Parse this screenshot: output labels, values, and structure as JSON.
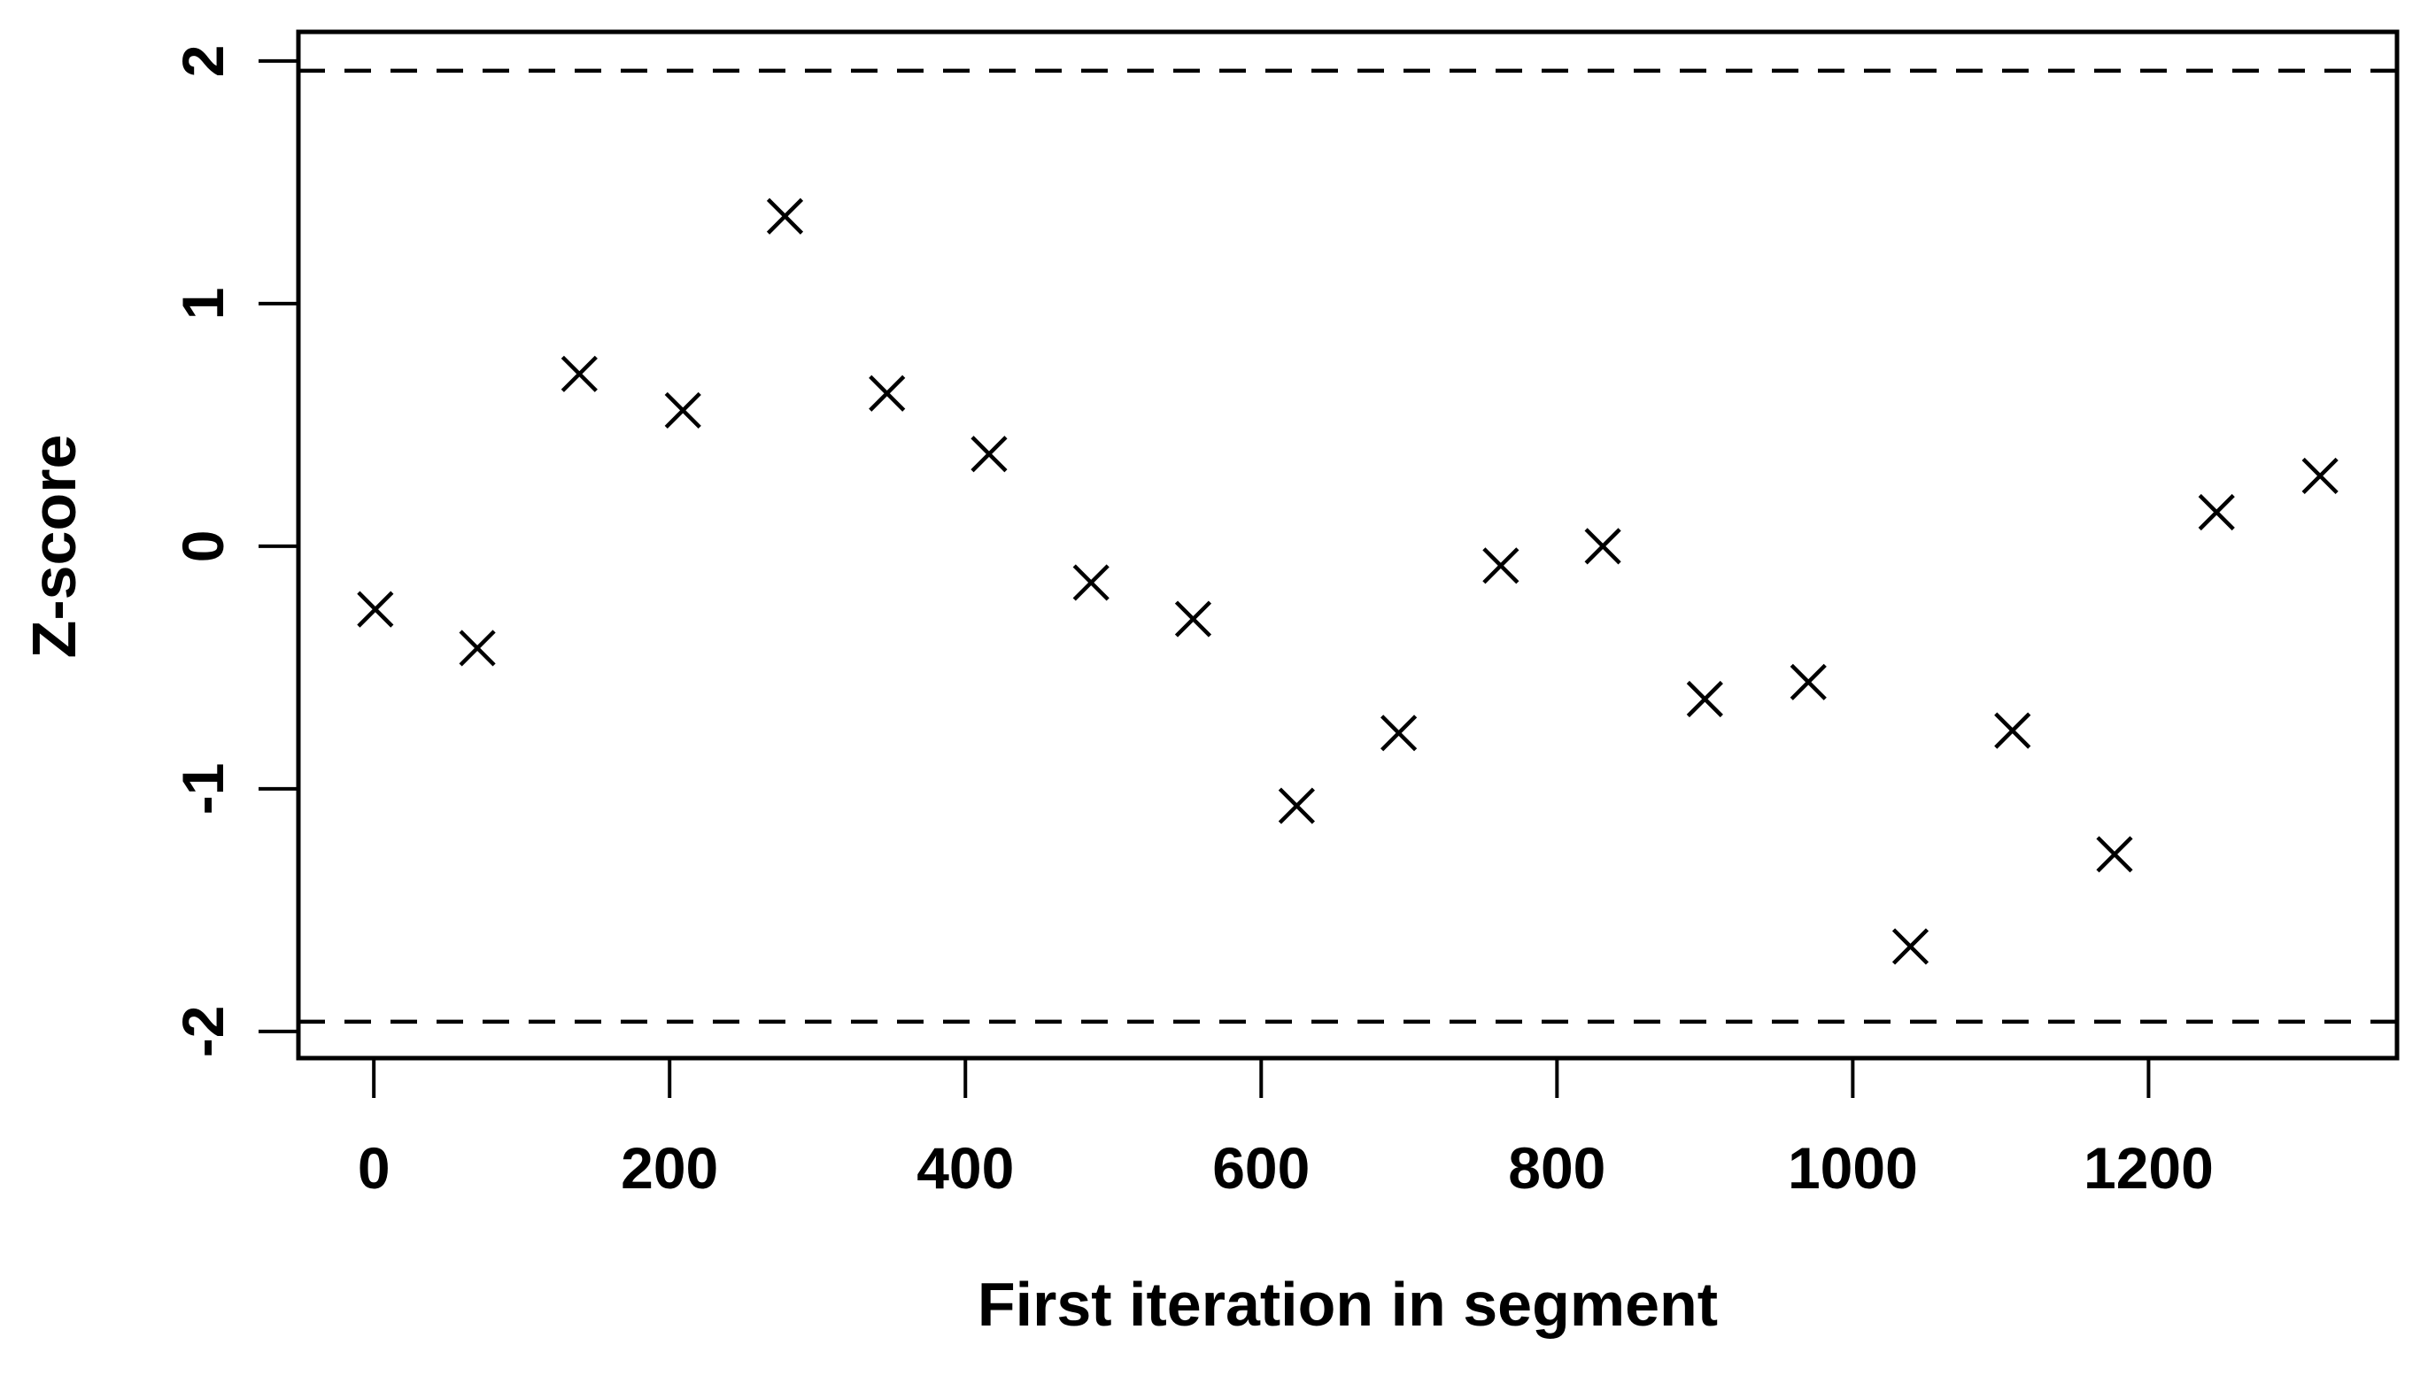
{
  "figure": {
    "background_color": "#ffffff",
    "foreground_color": "#000000"
  },
  "chart_data": {
    "type": "scatter",
    "title": "",
    "xlabel": "First iteration in segment",
    "ylabel": "Z-score",
    "marker": "x",
    "marker_color": "#000000",
    "grid": false,
    "legend": null,
    "xlim": [
      -51,
      1368
    ],
    "ylim": [
      -2.11,
      2.12
    ],
    "x_ticks": [
      0,
      200,
      400,
      600,
      800,
      1000,
      1200
    ],
    "y_ticks": [
      -2,
      -1,
      0,
      1,
      2
    ],
    "threshold_lines": {
      "style": "dashed",
      "values": [
        1.96,
        -1.96
      ]
    },
    "points": {
      "x": [
        1,
        70,
        139,
        209,
        278,
        347,
        416,
        485,
        554,
        624,
        693,
        762,
        831,
        900,
        970,
        1039,
        1108,
        1177,
        1246,
        1316
      ],
      "y": [
        -0.26,
        -0.42,
        0.71,
        0.56,
        1.36,
        0.63,
        0.38,
        -0.15,
        -0.3,
        -1.07,
        -0.77,
        -0.08,
        0.0,
        -0.63,
        -0.56,
        -1.65,
        -0.76,
        -1.27,
        0.14,
        0.29
      ]
    }
  }
}
